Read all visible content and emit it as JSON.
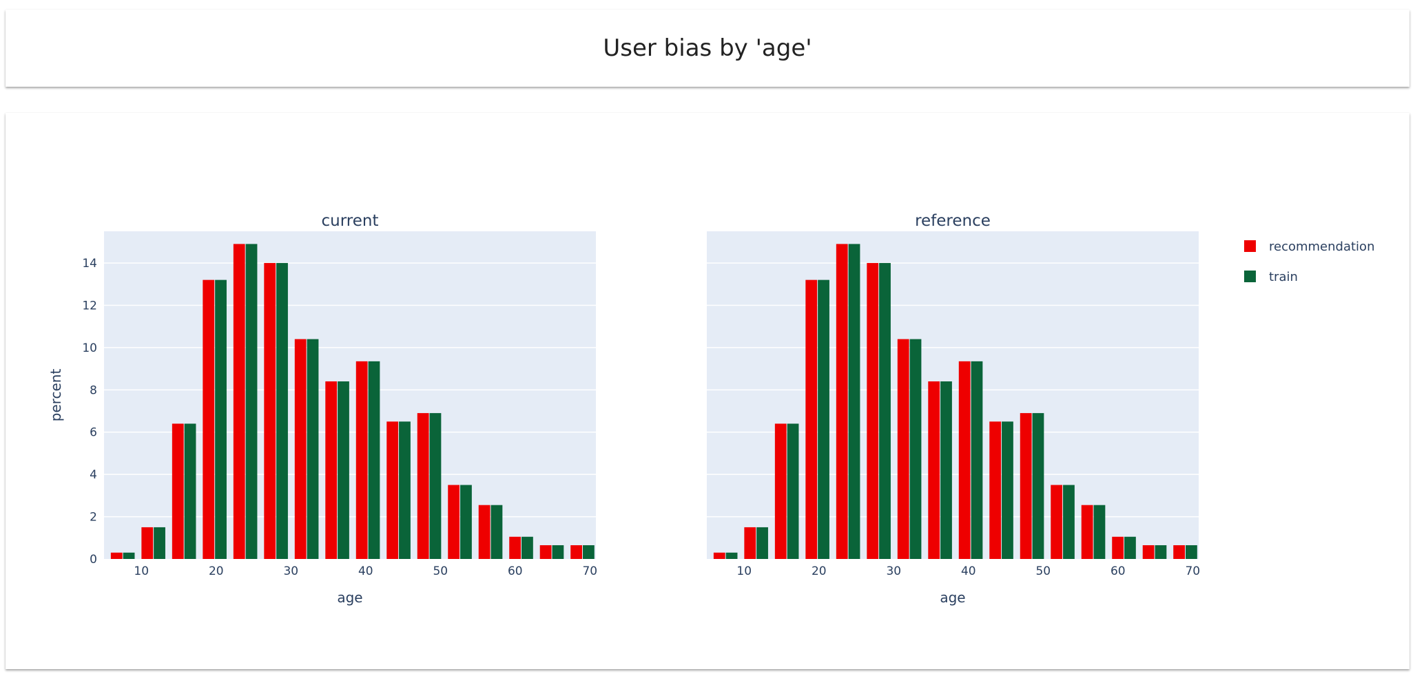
{
  "page": {
    "title": "User bias by 'age'"
  },
  "chart_data": {
    "type": "bar",
    "ylabel": "percent",
    "ylim": [
      0,
      15.5
    ],
    "yticks": [
      0,
      2,
      4,
      6,
      8,
      10,
      12,
      14
    ],
    "xlim": [
      5,
      70.8
    ],
    "xticks": [
      10,
      20,
      30,
      40,
      50,
      60,
      70
    ],
    "grid": true,
    "legend_position": "right",
    "colors": {
      "recommendation": "#ee0000",
      "train": "#0a6439",
      "plot_bg": "#e5ecf6",
      "grid": "#ffffff",
      "text": "#2a3f5f"
    },
    "bin_width": 4.1,
    "bin_start": [
      5.5,
      9.6,
      13.7,
      17.8,
      21.9,
      26.0,
      30.1,
      34.2,
      38.3,
      42.4,
      46.5,
      50.6,
      54.7,
      58.8,
      62.9,
      67.0
    ],
    "legend": [
      "recommendation",
      "train"
    ],
    "panels": [
      {
        "title": "current",
        "xlabel": "age",
        "series": [
          {
            "name": "recommendation",
            "values": [
              0.3,
              1.5,
              6.4,
              13.2,
              14.9,
              14.0,
              10.4,
              8.4,
              9.35,
              6.5,
              6.9,
              3.5,
              2.55,
              1.05,
              0.65,
              0.65
            ]
          },
          {
            "name": "train",
            "values": [
              0.3,
              1.5,
              6.4,
              13.2,
              14.9,
              14.0,
              10.4,
              8.4,
              9.35,
              6.5,
              6.9,
              3.5,
              2.55,
              1.05,
              0.65,
              0.65
            ]
          }
        ]
      },
      {
        "title": "reference",
        "xlabel": "age",
        "series": [
          {
            "name": "recommendation",
            "values": [
              0.3,
              1.5,
              6.4,
              13.2,
              14.9,
              14.0,
              10.4,
              8.4,
              9.35,
              6.5,
              6.9,
              3.5,
              2.55,
              1.05,
              0.65,
              0.65
            ]
          },
          {
            "name": "train",
            "values": [
              0.3,
              1.5,
              6.4,
              13.2,
              14.9,
              14.0,
              10.4,
              8.4,
              9.35,
              6.5,
              6.9,
              3.5,
              2.55,
              1.05,
              0.65,
              0.65
            ]
          }
        ]
      }
    ]
  }
}
